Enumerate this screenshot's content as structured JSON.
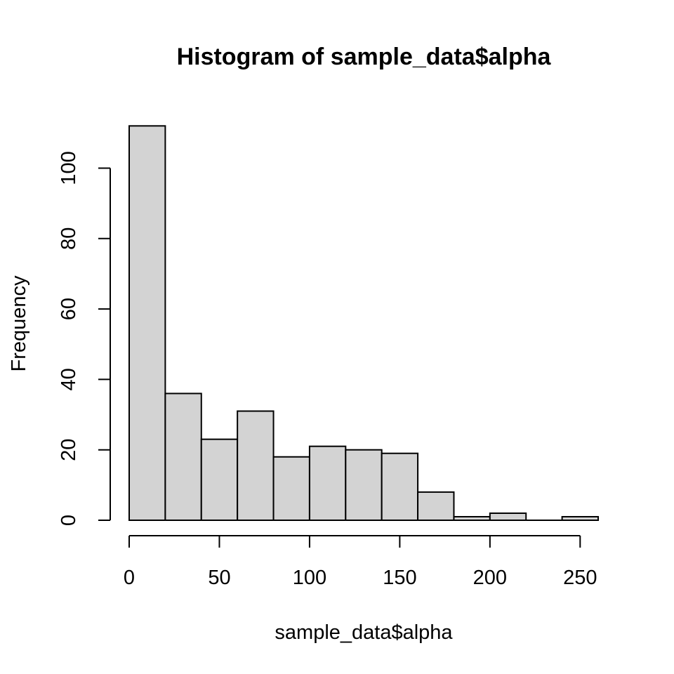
{
  "chart_data": {
    "type": "bar",
    "subtype": "histogram",
    "title": "Histogram of sample_data$alpha",
    "xlabel": "sample_data$alpha",
    "ylabel": "Frequency",
    "bin_edges": [
      0,
      20,
      40,
      60,
      80,
      100,
      120,
      140,
      160,
      180,
      200,
      220,
      240,
      260
    ],
    "values": [
      112,
      36,
      23,
      31,
      18,
      21,
      20,
      19,
      8,
      1,
      2,
      0,
      1
    ],
    "xlim": [
      0,
      260
    ],
    "ylim": [
      0,
      112
    ],
    "x_ticks": [
      0,
      50,
      100,
      150,
      200,
      250
    ],
    "x_tick_labels": [
      "0",
      "50",
      "100",
      "150",
      "200",
      "250"
    ],
    "y_ticks": [
      0,
      20,
      40,
      60,
      80,
      100
    ],
    "y_tick_labels": [
      "0",
      "20",
      "40",
      "60",
      "80",
      "100"
    ],
    "grid": false,
    "bar_color": "#d3d3d3",
    "edge_color": "#000000"
  }
}
